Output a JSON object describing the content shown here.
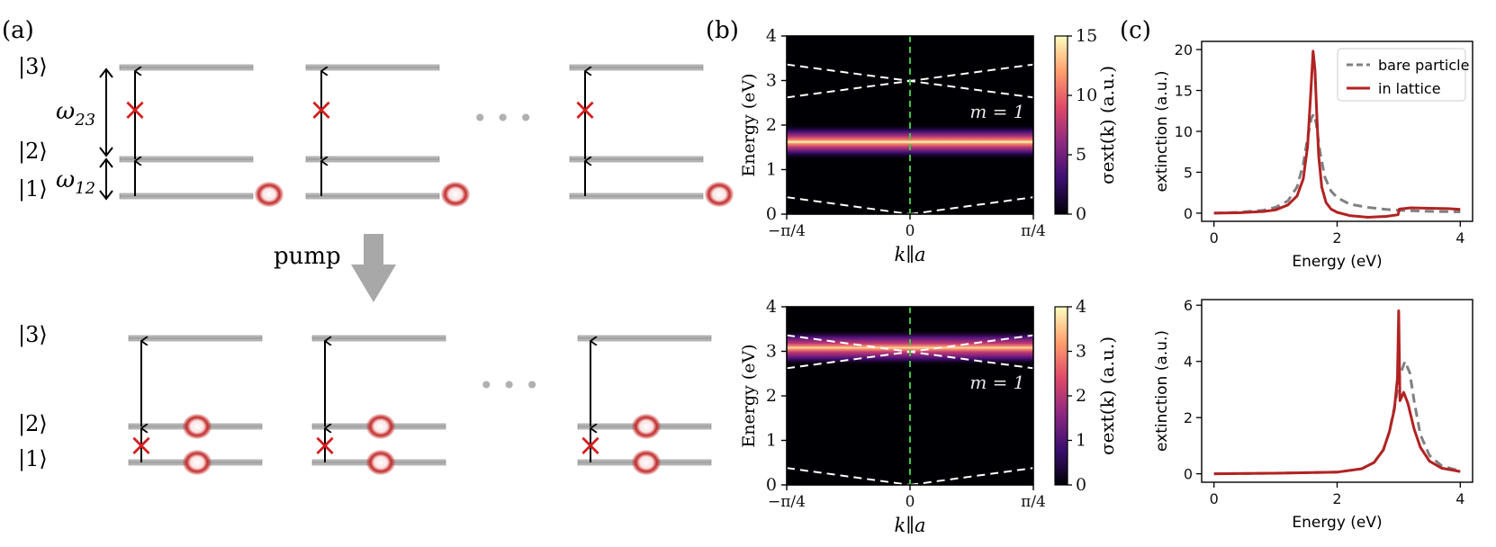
{
  "panels": {
    "a": {
      "label": "(a)",
      "levels": [
        "|3⟩",
        "|2⟩",
        "|1⟩"
      ],
      "omega23": "ω",
      "omega23_sub": "23",
      "omega12": "ω",
      "omega12_sub": "12",
      "ellipsis": "• • •",
      "pump": "pump",
      "blocked_mark": "×"
    },
    "b": {
      "label": "(b)",
      "m_label": "m = 1",
      "xticks": [
        "−π/4",
        "0",
        "π/4"
      ],
      "xlabel": "k∥a",
      "ylabel": "Energy (eV)",
      "cbar_label": "σext(k) (a.u.)"
    },
    "c": {
      "label": "(c)"
    }
  },
  "chart_data": [
    {
      "type": "heatmap",
      "id": "b-top",
      "title": "",
      "xlabel": "k∥a",
      "ylabel": "Energy (eV)",
      "xlim": [
        -0.785,
        0.785
      ],
      "ylim": [
        0,
        4
      ],
      "yticks": [
        0,
        1,
        2,
        3,
        4
      ],
      "band_center_eV": 1.62,
      "annotation": "m = 1",
      "dashed_lines": [
        {
          "k": [
            -0.785,
            0.785
          ],
          "E": [
            3.36,
            2.62
          ]
        },
        {
          "k": [
            -0.785,
            0.785
          ],
          "E": [
            2.62,
            3.36
          ]
        },
        {
          "k": [
            -0.785,
            0
          ],
          "E": [
            0.38,
            0
          ]
        },
        {
          "k": [
            0,
            0.785
          ],
          "E": [
            0,
            0.38
          ]
        }
      ],
      "colorbar": {
        "label": "σext(k) (a.u.)",
        "ticks": [
          0,
          5,
          10,
          15
        ],
        "range": [
          0,
          15
        ]
      }
    },
    {
      "type": "heatmap",
      "id": "b-bottom",
      "title": "",
      "xlabel": "k∥a",
      "ylabel": "Energy (eV)",
      "xlim": [
        -0.785,
        0.785
      ],
      "ylim": [
        0,
        4
      ],
      "yticks": [
        0,
        1,
        2,
        3,
        4
      ],
      "band_center_eV": 3.08,
      "annotation": "m = 1",
      "dashed_lines": [
        {
          "k": [
            -0.785,
            0.785
          ],
          "E": [
            3.36,
            2.62
          ]
        },
        {
          "k": [
            -0.785,
            0.785
          ],
          "E": [
            2.62,
            3.36
          ]
        },
        {
          "k": [
            -0.785,
            0
          ],
          "E": [
            0.38,
            0
          ]
        },
        {
          "k": [
            0,
            0.785
          ],
          "E": [
            0,
            0.38
          ]
        }
      ],
      "colorbar": {
        "label": "σext(k) (a.u.)",
        "ticks": [
          0,
          1,
          2,
          3,
          4
        ],
        "range": [
          0,
          4
        ]
      }
    },
    {
      "type": "line",
      "id": "c-top",
      "xlabel": "Energy (eV)",
      "ylabel": "extinction (a.u.)",
      "xlim": [
        -0.2,
        4.2
      ],
      "ylim": [
        -1,
        21
      ],
      "xticks": [
        0,
        2,
        4
      ],
      "yticks": [
        0,
        5,
        10,
        15,
        20
      ],
      "legend": {
        "position": "top-right"
      },
      "series": [
        {
          "name": "bare particle",
          "style": "dashed",
          "color": "#808080",
          "x": [
            0,
            0.4,
            0.8,
            1.0,
            1.2,
            1.35,
            1.45,
            1.52,
            1.58,
            1.62,
            1.66,
            1.72,
            1.8,
            1.9,
            2.0,
            2.2,
            2.5,
            2.8,
            3.0,
            3.2,
            3.5,
            4.0
          ],
          "y": [
            0,
            0.1,
            0.35,
            0.7,
            1.5,
            3.2,
            6.0,
            9.2,
            11.6,
            12.1,
            11.0,
            7.6,
            4.4,
            2.7,
            1.9,
            1.1,
            0.7,
            0.45,
            0.35,
            0.3,
            0.22,
            0.15
          ]
        },
        {
          "name": "in lattice",
          "style": "solid",
          "color": "#b22222",
          "x": [
            0,
            0.4,
            0.8,
            1.0,
            1.2,
            1.35,
            1.45,
            1.52,
            1.57,
            1.61,
            1.64,
            1.67,
            1.7,
            1.75,
            1.82,
            1.9,
            2.0,
            2.2,
            2.5,
            2.8,
            2.99,
            3.01,
            3.2,
            3.5,
            3.8,
            4.0
          ],
          "y": [
            0,
            0.05,
            0.2,
            0.4,
            1.0,
            2.1,
            4.2,
            8.2,
            14.5,
            19.8,
            17.5,
            12.0,
            7.0,
            3.2,
            1.3,
            0.5,
            0.1,
            -0.3,
            -0.5,
            -0.4,
            -0.2,
            0.5,
            0.65,
            0.6,
            0.55,
            0.45
          ]
        }
      ]
    },
    {
      "type": "line",
      "id": "c-bottom",
      "xlabel": "Energy (eV)",
      "ylabel": "extinction (a.u.)",
      "xlim": [
        -0.2,
        4.2
      ],
      "ylim": [
        -0.3,
        6.2
      ],
      "xticks": [
        0,
        2,
        4
      ],
      "yticks": [
        0,
        2,
        4,
        6
      ],
      "series": [
        {
          "name": "bare particle",
          "style": "dashed",
          "color": "#808080",
          "x": [
            0,
            1.0,
            2.0,
            2.4,
            2.6,
            2.75,
            2.85,
            2.95,
            3.02,
            3.1,
            3.18,
            3.25,
            3.35,
            3.5,
            3.7,
            4.0
          ],
          "y": [
            0,
            0.02,
            0.06,
            0.18,
            0.4,
            0.85,
            1.5,
            2.6,
            3.5,
            4.0,
            3.6,
            2.6,
            1.4,
            0.65,
            0.28,
            0.1
          ]
        },
        {
          "name": "in lattice",
          "style": "solid",
          "color": "#b22222",
          "x": [
            0,
            1.0,
            2.0,
            2.4,
            2.6,
            2.75,
            2.85,
            2.93,
            2.98,
            3.0,
            3.02,
            3.08,
            3.15,
            3.25,
            3.35,
            3.5,
            3.7,
            4.0
          ],
          "y": [
            0,
            0.02,
            0.06,
            0.18,
            0.4,
            0.85,
            1.5,
            2.3,
            3.4,
            5.8,
            2.6,
            2.9,
            2.5,
            1.6,
            0.95,
            0.45,
            0.2,
            0.08
          ]
        }
      ]
    }
  ]
}
